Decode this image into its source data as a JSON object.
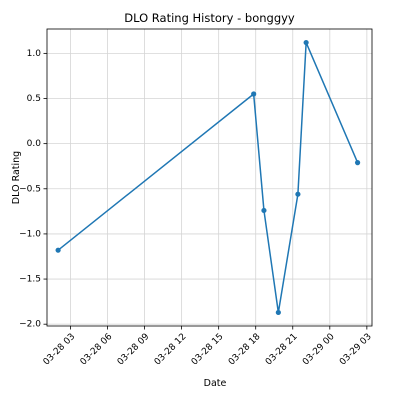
{
  "chart_data": {
    "type": "line",
    "title": "DLO Rating History - bonggyy",
    "xlabel": "Date",
    "ylabel": "DLO Rating",
    "x_type": "datetime",
    "x_ticks": [
      {
        "value": "2023-03-28T03:00",
        "label": "03-28 03"
      },
      {
        "value": "2023-03-28T06:00",
        "label": "03-28 06"
      },
      {
        "value": "2023-03-28T09:00",
        "label": "03-28 09"
      },
      {
        "value": "2023-03-28T12:00",
        "label": "03-28 12"
      },
      {
        "value": "2023-03-28T15:00",
        "label": "03-28 15"
      },
      {
        "value": "2023-03-28T18:00",
        "label": "03-28 18"
      },
      {
        "value": "2023-03-28T21:00",
        "label": "03-28 21"
      },
      {
        "value": "2023-03-29T00:00",
        "label": "03-29 00"
      },
      {
        "value": "2023-03-29T03:00",
        "label": "03-29 03"
      }
    ],
    "y_ticks": [
      {
        "value": 1.0,
        "label": "1.0"
      },
      {
        "value": 0.5,
        "label": "0.5"
      },
      {
        "value": 0.0,
        "label": "0.0"
      },
      {
        "value": -0.5,
        "label": "−0.5"
      },
      {
        "value": -1.0,
        "label": "−1.0"
      },
      {
        "value": -1.5,
        "label": "−1.5"
      },
      {
        "value": -2.0,
        "label": "−2.0"
      }
    ],
    "xlim": [
      "2023-03-28T01:06",
      "2023-03-29T03:25"
    ],
    "ylim": [
      -2.02,
      1.27
    ],
    "grid": true,
    "legend": false,
    "series": [
      {
        "color": "#1f77b4",
        "points": [
          {
            "x": "2023-03-28T02:00",
            "y": -1.18
          },
          {
            "x": "2023-03-28T17:50",
            "y": 0.55
          },
          {
            "x": "2023-03-28T18:40",
            "y": -0.74
          },
          {
            "x": "2023-03-28T19:50",
            "y": -1.87
          },
          {
            "x": "2023-03-28T21:25",
            "y": -0.56
          },
          {
            "x": "2023-03-28T22:05",
            "y": 1.12
          },
          {
            "x": "2023-03-29T02:15",
            "y": -0.21
          }
        ]
      }
    ]
  }
}
